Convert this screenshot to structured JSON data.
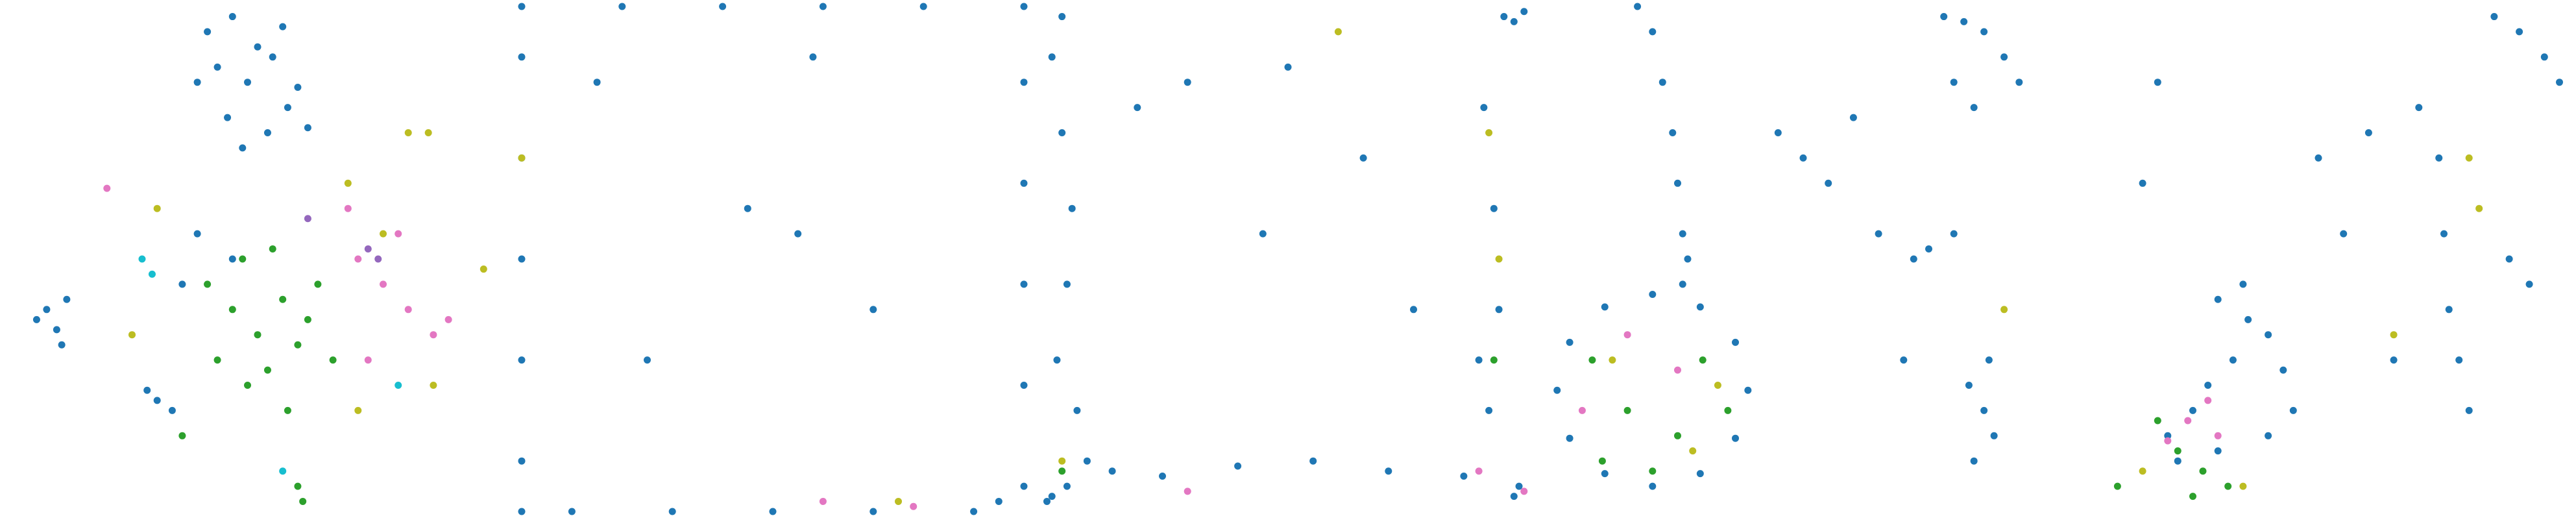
{
  "chart_data": [
    {
      "type": "scatter",
      "xlim": [
        0,
        100
      ],
      "ylim": [
        0,
        100
      ],
      "series": [
        {
          "color": "#1f77b4",
          "x": [
            40,
            45,
            50,
            55,
            42,
            48,
            53,
            58,
            44,
            52,
            47,
            56,
            38,
            60,
            8,
            10,
            12,
            6,
            11,
            30,
            33,
            28,
            35,
            45,
            38
          ],
          "y": [
            95,
            98,
            92,
            96,
            88,
            85,
            90,
            84,
            78,
            75,
            72,
            80,
            85,
            76,
            40,
            36,
            42,
            38,
            33,
            22,
            20,
            24,
            45,
            50,
            55
          ]
        },
        {
          "color": "#2ca02c",
          "x": [
            45,
            50,
            55,
            60,
            42,
            48,
            52,
            58,
            62,
            47,
            53,
            40,
            56,
            58,
            59,
            35,
            65
          ],
          "y": [
            40,
            35,
            42,
            38,
            30,
            25,
            28,
            33,
            45,
            50,
            52,
            45,
            20,
            5,
            2,
            15,
            30
          ]
        },
        {
          "color": "#e377c2",
          "x": [
            70,
            75,
            80,
            85,
            72,
            78,
            68,
            88,
            20
          ],
          "y": [
            50,
            45,
            40,
            35,
            30,
            55,
            60,
            38,
            64
          ]
        },
        {
          "color": "#bcbd22",
          "x": [
            30,
            68,
            75,
            80,
            85,
            95,
            84,
            25,
            70
          ],
          "y": [
            60,
            65,
            55,
            75,
            25,
            48,
            75,
            35,
            20
          ]
        },
        {
          "color": "#17becf",
          "x": [
            27,
            29,
            78,
            55
          ],
          "y": [
            50,
            47,
            25,
            8
          ]
        },
        {
          "color": "#9467bd",
          "x": [
            72,
            74,
            60
          ],
          "y": [
            52,
            50,
            58
          ]
        }
      ]
    },
    {
      "type": "scatter",
      "xlim": [
        0,
        100
      ],
      "ylim": [
        0,
        100
      ],
      "series": [
        {
          "color": "#1f77b4",
          "x": [
            0,
            0,
            0,
            0,
            0,
            0,
            0,
            100,
            100,
            100,
            100,
            100,
            100,
            10,
            30,
            50,
            70,
            90,
            20,
            60,
            80,
            40,
            45,
            55,
            70,
            58,
            95,
            15,
            25
          ],
          "y": [
            10,
            30,
            50,
            70,
            90,
            100,
            0,
            5,
            25,
            45,
            65,
            85,
            100,
            0,
            0,
            0,
            0,
            0,
            100,
            100,
            100,
            100,
            60,
            55,
            40,
            90,
            2,
            85,
            30
          ]
        },
        {
          "color": "#e377c2",
          "x": [
            60,
            78
          ],
          "y": [
            2,
            1
          ]
        },
        {
          "color": "#bcbd22",
          "x": [
            75,
            0
          ],
          "y": [
            2,
            70
          ]
        }
      ]
    },
    {
      "type": "scatter",
      "xlim": [
        0,
        100
      ],
      "ylim": [
        0,
        100
      ],
      "series": [
        {
          "color": "#1f77b4",
          "x": [
            3,
            5,
            7,
            6,
            4,
            8,
            10,
            6,
            3,
            15,
            25,
            40,
            55,
            70,
            85,
            90,
            92,
            91,
            89,
            93,
            95,
            97,
            96,
            30,
            50,
            65,
            20,
            45,
            75,
            88,
            5,
            2,
            95
          ],
          "y": [
            90,
            75,
            60,
            45,
            30,
            20,
            10,
            5,
            3,
            8,
            7,
            9,
            10,
            8,
            7,
            20,
            40,
            60,
            80,
            98,
            97,
            99,
            5,
            85,
            88,
            70,
            80,
            55,
            40,
            30,
            98,
            2,
            3
          ]
        },
        {
          "color": "#bcbd22",
          "x": [
            60,
            90,
            92,
            5
          ],
          "y": [
            95,
            75,
            50,
            10
          ]
        },
        {
          "color": "#e377c2",
          "x": [
            30,
            88,
            97
          ],
          "y": [
            4,
            8,
            4
          ]
        },
        {
          "color": "#2ca02c",
          "x": [
            5,
            91
          ],
          "y": [
            8,
            30
          ]
        }
      ]
    },
    {
      "type": "scatter",
      "xlim": [
        0,
        100
      ],
      "ylim": [
        0,
        100
      ],
      "series": [
        {
          "color": "#1f77b4",
          "x": [
            39,
            36.5,
            29.5,
            20,
            10.5,
            3.5,
            1,
            3.5,
            10.5,
            20,
            29.5,
            36.5,
            17,
            20,
            22,
            24,
            25,
            26,
            27,
            26,
            78,
            82,
            86,
            90,
            93,
            80,
            84,
            83,
            86,
            88,
            84,
            87,
            45,
            50,
            55,
            60,
            65,
            72,
            75,
            80,
            70
          ],
          "y": [
            24,
            33.5,
            40.5,
            43,
            40.5,
            33.5,
            24,
            14.5,
            7.5,
            5,
            7.5,
            14.5,
            100,
            95,
            85,
            75,
            65,
            55,
            50,
            45,
            98,
            97,
            95,
            90,
            85,
            85,
            80,
            25,
            20,
            15,
            10,
            30,
            75,
            70,
            65,
            78,
            55,
            50,
            52,
            55,
            30
          ]
        },
        {
          "color": "#2ca02c",
          "x": [
            10,
            15,
            25,
            30,
            20,
            8,
            35
          ],
          "y": [
            10,
            20,
            15,
            30,
            8,
            30,
            20
          ]
        },
        {
          "color": "#bcbd22",
          "x": [
            12,
            28,
            33,
            90
          ],
          "y": [
            30,
            12,
            25,
            40
          ]
        },
        {
          "color": "#e377c2",
          "x": [
            15,
            25,
            6
          ],
          "y": [
            35,
            28,
            20
          ]
        }
      ]
    },
    {
      "type": "scatter",
      "xlim": [
        0,
        100
      ],
      "ylim": [
        0,
        100
      ],
      "series": [
        {
          "color": "#1f77b4",
          "x": [
            20,
            25,
            30,
            22,
            28,
            33,
            36,
            40,
            43,
            45,
            35,
            30,
            50,
            60,
            70,
            74,
            75,
            76,
            78,
            80,
            85,
            90,
            95,
            98,
            92,
            15,
            18,
            40,
            55,
            65,
            88
          ],
          "y": [
            15,
            20,
            12,
            10,
            25,
            30,
            38,
            35,
            28,
            20,
            45,
            42,
            70,
            75,
            80,
            70,
            55,
            40,
            30,
            20,
            98,
            95,
            90,
            85,
            45,
            65,
            85,
            15,
            55,
            30,
            50
          ]
        },
        {
          "color": "#2ca02c",
          "x": [
            22,
            27,
            18,
            32,
            25,
            10
          ],
          "y": [
            12,
            8,
            18,
            5,
            3,
            5
          ]
        },
        {
          "color": "#e377c2",
          "x": [
            24,
            30,
            20,
            28
          ],
          "y": [
            18,
            15,
            14,
            22
          ]
        },
        {
          "color": "#bcbd22",
          "x": [
            15,
            35,
            80,
            82,
            65
          ],
          "y": [
            8,
            5,
            70,
            60,
            35
          ]
        }
      ]
    }
  ]
}
